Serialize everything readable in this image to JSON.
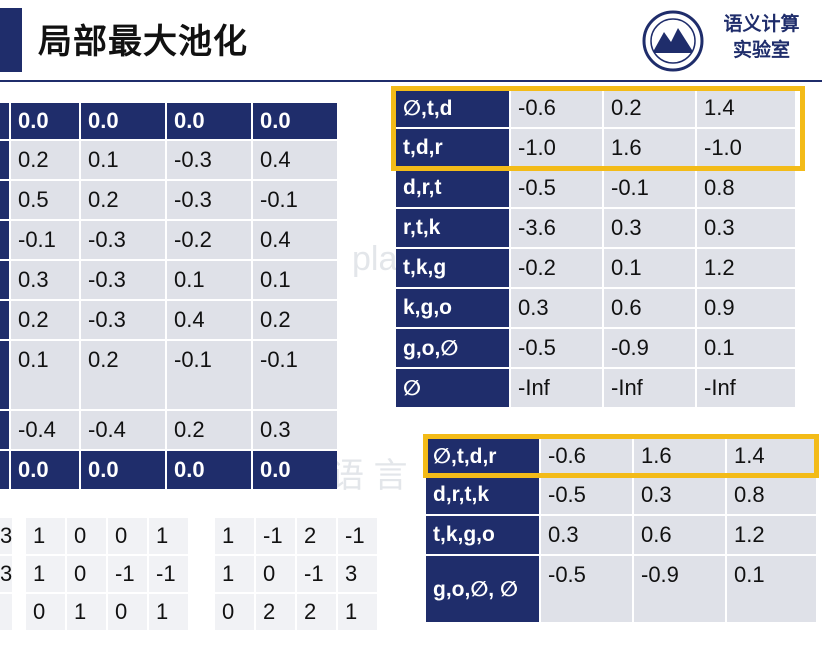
{
  "title": "局部最大池化",
  "org": {
    "line1": "语义计算",
    "line2": "实验室"
  },
  "watermarks": [
    "pla",
    "语 言"
  ],
  "left_matrix": [
    [
      "0.0",
      "0.0",
      "0.0",
      "0.0"
    ],
    [
      "0.2",
      "0.1",
      "-0.3",
      "0.4"
    ],
    [
      "0.5",
      "0.2",
      "-0.3",
      "-0.1"
    ],
    [
      "-0.1",
      "-0.3",
      "-0.2",
      "0.4"
    ],
    [
      "0.3",
      "-0.3",
      "0.1",
      "0.1"
    ],
    [
      "0.2",
      "-0.3",
      "0.4",
      "0.2"
    ],
    [
      "0.1",
      "0.2",
      "-0.1",
      "-0.1"
    ],
    [
      "-0.4",
      "-0.4",
      "0.2",
      "0.3"
    ],
    [
      "0.0",
      "0.0",
      "0.0",
      "0.0"
    ]
  ],
  "filter_a_first_col": [
    "3",
    "3",
    ""
  ],
  "filter_b": [
    [
      "1",
      "0",
      "0",
      "1"
    ],
    [
      "1",
      "0",
      "-1",
      "-1"
    ],
    [
      "0",
      "1",
      "0",
      "1"
    ]
  ],
  "filter_c": [
    [
      "1",
      "-1",
      "2",
      "-1"
    ],
    [
      "1",
      "0",
      "-1",
      "3"
    ],
    [
      "0",
      "2",
      "2",
      "1"
    ]
  ],
  "trigram_table": [
    {
      "label": "∅,t,d",
      "values": [
        "-0.6",
        "0.2",
        "1.4"
      ]
    },
    {
      "label": "t,d,r",
      "values": [
        "-1.0",
        "1.6",
        "-1.0"
      ]
    },
    {
      "label": "d,r,t",
      "values": [
        "-0.5",
        "-0.1",
        "0.8"
      ]
    },
    {
      "label": "r,t,k",
      "values": [
        "-3.6",
        "0.3",
        "0.3"
      ]
    },
    {
      "label": "t,k,g",
      "values": [
        "-0.2",
        "0.1",
        "1.2"
      ]
    },
    {
      "label": "k,g,o",
      "values": [
        "0.3",
        "0.6",
        "0.9"
      ]
    },
    {
      "label": "g,o,∅",
      "values": [
        "-0.5",
        "-0.9",
        "0.1"
      ]
    },
    {
      "label": "∅",
      "values": [
        "-Inf",
        "-Inf",
        "-Inf"
      ]
    }
  ],
  "pooled_table": [
    {
      "label": "∅,t,d,r",
      "values": [
        "-0.6",
        "1.6",
        "1.4"
      ]
    },
    {
      "label": "d,r,t,k",
      "values": [
        "-0.5",
        "0.3",
        "0.8"
      ]
    },
    {
      "label": "t,k,g,o",
      "values": [
        "0.3",
        "0.6",
        "1.2"
      ]
    },
    {
      "label": "g,o,∅, ∅",
      "values": [
        "-0.5",
        "-0.9",
        "0.1"
      ]
    }
  ],
  "colors": {
    "navy": "#1f2d6b",
    "cell": "#dfe1e8",
    "highlight": "#f3bb18"
  }
}
